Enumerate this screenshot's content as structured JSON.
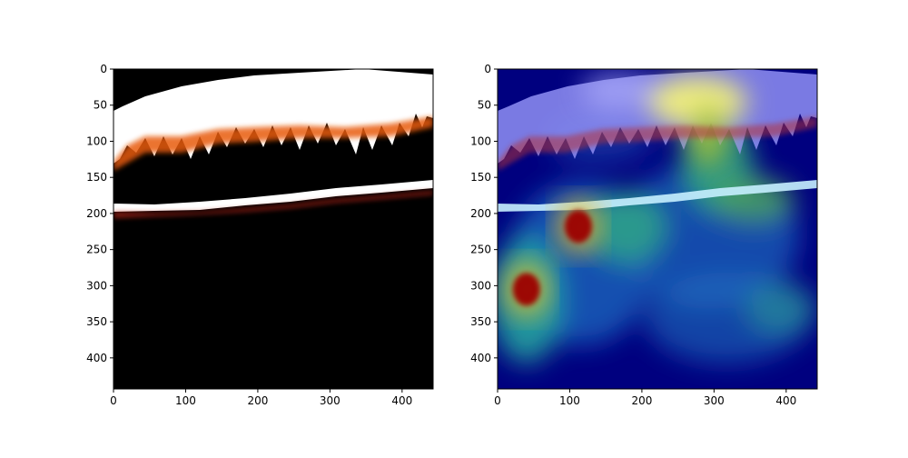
{
  "chart_data": [
    {
      "type": "heatmap",
      "variant": "thresholded-image",
      "colormap": "hot",
      "x_ticks": [
        0,
        100,
        200,
        300,
        400
      ],
      "y_ticks": [
        0,
        50,
        100,
        150,
        200,
        250,
        300,
        350,
        400
      ],
      "xlim": [
        0,
        443
      ],
      "ylim": [
        443,
        0
      ],
      "grid": false
    },
    {
      "type": "heatmap",
      "variant": "image-with-attention-overlay",
      "colormap": "jet",
      "x_ticks": [
        0,
        100,
        200,
        300,
        400
      ],
      "y_ticks": [
        0,
        50,
        100,
        150,
        200,
        250,
        300,
        350,
        400
      ],
      "xlim": [
        0,
        443
      ],
      "ylim": [
        443,
        0
      ],
      "grid": false,
      "hotspots": [
        {
          "x": 40,
          "y": 305,
          "intensity": 1.0
        },
        {
          "x": 112,
          "y": 218,
          "intensity": 0.95
        },
        {
          "x": 270,
          "y": 48,
          "intensity": 0.75
        },
        {
          "x": 300,
          "y": 205,
          "intensity": 0.55
        },
        {
          "x": 160,
          "y": 240,
          "intensity": 0.45
        },
        {
          "x": 310,
          "y": 350,
          "intensity": 0.4
        }
      ]
    }
  ],
  "colors": {
    "panel_background": "#000000",
    "overlay_background": "#00007f",
    "snow": "#ffffff",
    "horizon_band": "#ffffff"
  }
}
